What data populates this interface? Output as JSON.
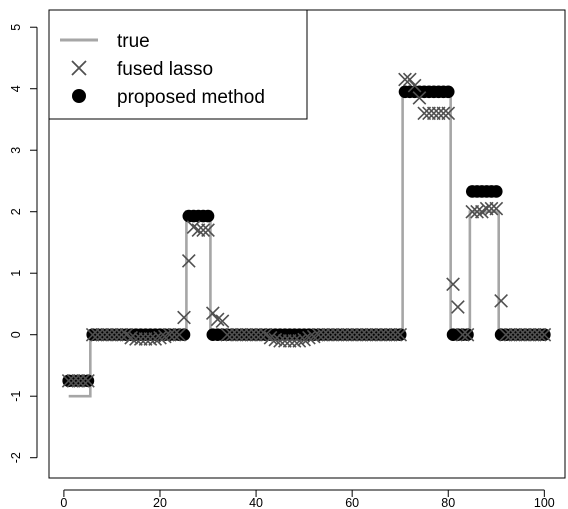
{
  "chart_data": {
    "type": "scatter",
    "xlim": [
      0,
      100
    ],
    "ylim": [
      -2,
      5
    ],
    "x_ticks": [
      0,
      20,
      40,
      60,
      80,
      100
    ],
    "y_ticks": [
      -2,
      -1,
      0,
      1,
      2,
      3,
      4,
      5
    ],
    "grid": false,
    "legend_position": "top-left",
    "legend": [
      {
        "label": "true",
        "marker": "line",
        "color": "#a6a6a6"
      },
      {
        "label": "fused lasso",
        "marker": "cross",
        "color": "#505050"
      },
      {
        "label": "proposed method",
        "marker": "dot",
        "color": "#000000"
      }
    ],
    "series": [
      {
        "name": "true",
        "kind": "step",
        "color": "#a6a6a6",
        "segments": [
          {
            "x_start": 1,
            "x_end": 5,
            "y": -1.0
          },
          {
            "x_start": 6,
            "x_end": 25,
            "y": 0.0
          },
          {
            "x_start": 26,
            "x_end": 30,
            "y": 2.0
          },
          {
            "x_start": 31,
            "x_end": 70,
            "y": 0.0
          },
          {
            "x_start": 71,
            "x_end": 80,
            "y": 4.0
          },
          {
            "x_start": 81,
            "x_end": 84,
            "y": 0.0
          },
          {
            "x_start": 85,
            "x_end": 90,
            "y": 2.0
          },
          {
            "x_start": 91,
            "x_end": 100,
            "y": 0.0
          }
        ]
      },
      {
        "name": "fused lasso",
        "kind": "points",
        "color": "#505050",
        "x": [
          1,
          2,
          3,
          4,
          5,
          6,
          7,
          8,
          9,
          10,
          11,
          12,
          13,
          14,
          15,
          16,
          17,
          18,
          19,
          20,
          21,
          22,
          23,
          24,
          25,
          26,
          27,
          28,
          29,
          30,
          31,
          32,
          33,
          34,
          35,
          36,
          37,
          38,
          39,
          40,
          41,
          42,
          43,
          44,
          45,
          46,
          47,
          48,
          49,
          50,
          51,
          52,
          53,
          54,
          55,
          56,
          57,
          58,
          59,
          60,
          61,
          62,
          63,
          64,
          65,
          66,
          67,
          68,
          69,
          70,
          71,
          72,
          73,
          74,
          75,
          76,
          77,
          78,
          79,
          80,
          81,
          82,
          83,
          84,
          85,
          86,
          87,
          88,
          89,
          90,
          91,
          92,
          93,
          94,
          95,
          96,
          97,
          98,
          99,
          100
        ],
        "y": [
          -0.75,
          -0.75,
          -0.75,
          -0.75,
          -0.75,
          0.0,
          0.0,
          0.0,
          0.0,
          0.0,
          0.0,
          0.0,
          0.0,
          -0.05,
          -0.07,
          -0.07,
          -0.07,
          -0.07,
          -0.07,
          -0.05,
          -0.03,
          0.0,
          0.0,
          0.0,
          0.28,
          1.2,
          1.75,
          1.7,
          1.7,
          1.7,
          0.35,
          0.25,
          0.22,
          0.0,
          0.0,
          0.0,
          0.0,
          0.0,
          0.0,
          0.0,
          0.0,
          0.0,
          -0.05,
          -0.08,
          -0.1,
          -0.1,
          -0.1,
          -0.1,
          -0.1,
          -0.08,
          -0.05,
          -0.03,
          0.0,
          0.0,
          0.0,
          0.0,
          0.0,
          0.0,
          0.0,
          0.0,
          0.0,
          0.0,
          0.0,
          0.0,
          0.0,
          0.0,
          0.0,
          0.0,
          0.0,
          0.0,
          4.15,
          4.15,
          4.05,
          3.85,
          3.6,
          3.6,
          3.6,
          3.6,
          3.6,
          3.6,
          0.82,
          0.45,
          0.0,
          0.0,
          2.0,
          2.0,
          2.0,
          2.05,
          2.05,
          2.05,
          0.55,
          0.0,
          0.0,
          0.0,
          0.0,
          0.0,
          0.0,
          0.0,
          0.0,
          0.0
        ]
      },
      {
        "name": "proposed method",
        "kind": "points",
        "color": "#000000",
        "x": [
          1,
          2,
          3,
          4,
          5,
          6,
          7,
          8,
          9,
          10,
          11,
          12,
          13,
          14,
          15,
          16,
          17,
          18,
          19,
          20,
          21,
          22,
          23,
          24,
          25,
          26,
          27,
          28,
          29,
          30,
          31,
          32,
          33,
          34,
          35,
          36,
          37,
          38,
          39,
          40,
          41,
          42,
          43,
          44,
          45,
          46,
          47,
          48,
          49,
          50,
          51,
          52,
          53,
          54,
          55,
          56,
          57,
          58,
          59,
          60,
          61,
          62,
          63,
          64,
          65,
          66,
          67,
          68,
          69,
          70,
          71,
          72,
          73,
          74,
          75,
          76,
          77,
          78,
          79,
          80,
          81,
          82,
          83,
          84,
          85,
          86,
          87,
          88,
          89,
          90,
          91,
          92,
          93,
          94,
          95,
          96,
          97,
          98,
          99,
          100
        ],
        "y": [
          -0.75,
          -0.75,
          -0.75,
          -0.75,
          -0.75,
          0.0,
          0.0,
          0.0,
          0.0,
          0.0,
          0.0,
          0.0,
          0.0,
          0.0,
          0.0,
          0.0,
          0.0,
          0.0,
          0.0,
          0.0,
          0.0,
          0.0,
          0.0,
          0.0,
          0.0,
          1.93,
          1.93,
          1.93,
          1.93,
          1.93,
          0.0,
          0.0,
          0.0,
          0.0,
          0.0,
          0.0,
          0.0,
          0.0,
          0.0,
          0.0,
          0.0,
          0.0,
          0.0,
          0.0,
          0.0,
          0.0,
          0.0,
          0.0,
          0.0,
          0.0,
          0.0,
          0.0,
          0.0,
          0.0,
          0.0,
          0.0,
          0.0,
          0.0,
          0.0,
          0.0,
          0.0,
          0.0,
          0.0,
          0.0,
          0.0,
          0.0,
          0.0,
          0.0,
          0.0,
          0.0,
          3.95,
          3.95,
          3.95,
          3.95,
          3.95,
          3.95,
          3.95,
          3.95,
          3.95,
          3.95,
          0.0,
          0.0,
          0.0,
          0.0,
          2.33,
          2.33,
          2.33,
          2.33,
          2.33,
          2.33,
          0.0,
          0.0,
          0.0,
          0.0,
          0.0,
          0.0,
          0.0,
          0.0,
          0.0,
          0.0
        ]
      }
    ]
  }
}
